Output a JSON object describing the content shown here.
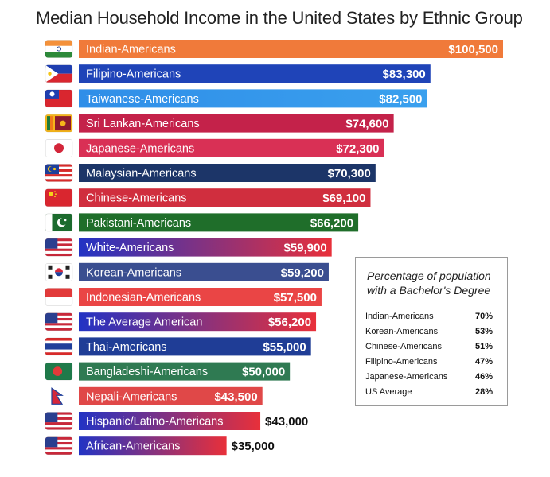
{
  "title": "Median Household Income in the United States  by Ethnic Group",
  "chart_data": {
    "type": "bar",
    "orientation": "horizontal",
    "title": "Median Household Income in the United States  by Ethnic Group",
    "categories": [
      "Indian-Americans",
      "Filipino-Americans",
      "Taiwanese-Americans",
      "Sri Lankan-Americans",
      "Japanese-Americans",
      "Malaysian-Americans",
      "Chinese-Americans",
      "Pakistani-Americans",
      "White-Americans",
      "Korean-Americans",
      "Indonesian-Americans",
      "The Average American",
      "Thai-Americans",
      "Bangladeshi-Americans",
      "Nepali-Americans",
      "Hispanic/Latino-Americans",
      "African-Americans"
    ],
    "values": [
      100500,
      83300,
      82500,
      74600,
      72300,
      70300,
      69100,
      66200,
      59900,
      59200,
      57500,
      56200,
      55000,
      50000,
      43500,
      43000,
      35000
    ],
    "value_labels": [
      "$100,500",
      "$83,300",
      "$82,500",
      "$74,600",
      "$72,300",
      "$70,300",
      "$69,100",
      "$66,200",
      "$59,900",
      "$59,200",
      "$57,500",
      "$56,200",
      "$55,000",
      "$50,000",
      "$43,500",
      "$43,000",
      "$35,000"
    ],
    "value_label_outside": [
      false,
      false,
      false,
      false,
      false,
      false,
      false,
      false,
      false,
      false,
      false,
      false,
      false,
      false,
      false,
      true,
      true
    ],
    "bar_colors": [
      [
        "#f07a3a",
        "#f07a3a"
      ],
      [
        "#1f44b8",
        "#1f44b8"
      ],
      [
        "#2f8ee8",
        "#3aa0ee"
      ],
      [
        "#c4224a",
        "#c4224a"
      ],
      [
        "#d93055",
        "#d93055"
      ],
      [
        "#1c3568",
        "#1c3568"
      ],
      [
        "#d02e3e",
        "#d02e3e"
      ],
      [
        "#1f6e2a",
        "#1f6e2a"
      ],
      [
        "#2233c4",
        "#e8303a"
      ],
      [
        "#3a4e90",
        "#3a4e90"
      ],
      [
        "#ea4545",
        "#ea4545"
      ],
      [
        "#2233c4",
        "#e8303a"
      ],
      [
        "#1f3d96",
        "#1f3d96"
      ],
      [
        "#2f7a52",
        "#2f7a52"
      ],
      [
        "#e04848",
        "#e04848"
      ],
      [
        "#2233c4",
        "#e8303a"
      ],
      [
        "#2233c4",
        "#e8303a"
      ]
    ],
    "flags": [
      "india",
      "philippines",
      "taiwan",
      "sri-lanka",
      "japan",
      "malaysia",
      "china",
      "pakistan",
      "usa",
      "south-korea",
      "indonesia",
      "usa",
      "thailand",
      "bangladesh",
      "nepal",
      "usa",
      "usa"
    ],
    "xlim": [
      0,
      100500
    ]
  },
  "legend": {
    "title": "Percentage of population with a Bachelor's Degree",
    "rows": [
      {
        "label": "Indian-Americans",
        "value": "70%"
      },
      {
        "label": "Korean-Americans",
        "value": "53%"
      },
      {
        "label": "Chinese-Americans",
        "value": "51%"
      },
      {
        "label": "Filipino-Americans",
        "value": "47%"
      },
      {
        "label": "Japanese-Americans",
        "value": "46%"
      },
      {
        "label": "US Average",
        "value": "28%"
      }
    ]
  }
}
